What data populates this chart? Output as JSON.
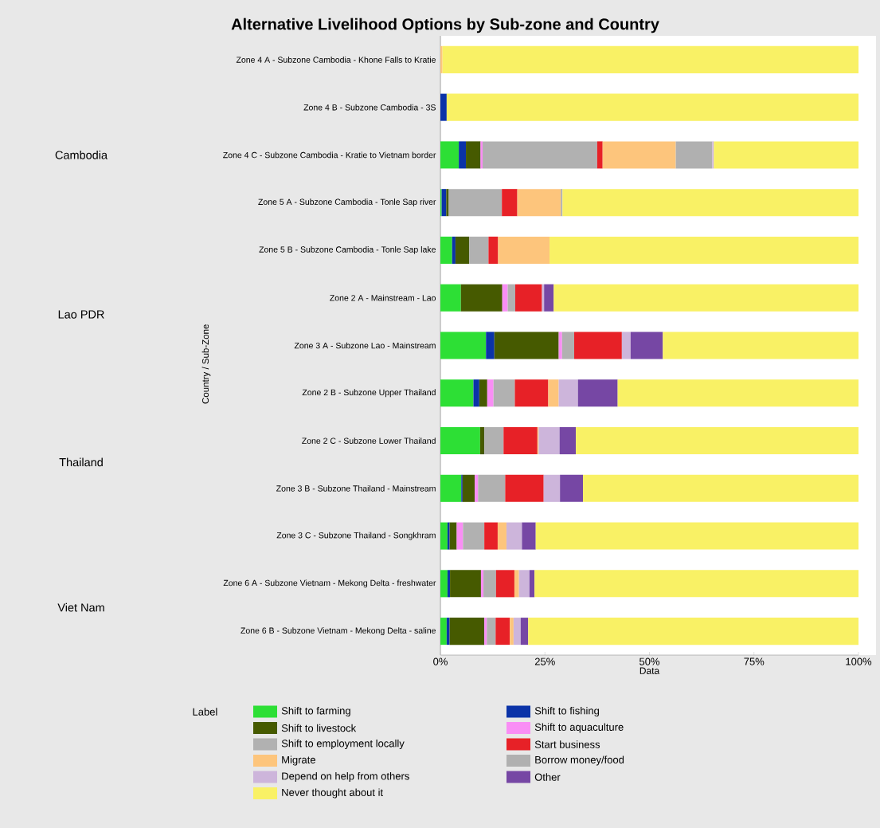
{
  "chart_data": {
    "type": "bar",
    "orientation": "horizontal",
    "stacked": true,
    "title": "Alternative Livelihood Options by Sub-zone and Country",
    "xlabel": "Data",
    "ylabel": "Country / Sub-Zone",
    "legend_title": "Label",
    "categories": [
      "Zone 4 A - Subzone Cambodia - Khone Falls to Kratie",
      "Zone 4 B - Subzone Cambodia - 3S",
      "Zone 4 C - Subzone Cambodia - Kratie to Vietnam border",
      "Zone 5 A - Subzone Cambodia - Tonle Sap river",
      "Zone 5 B - Subzone Cambodia - Tonle Sap lake",
      "Zone 2 A - Mainstream - Lao",
      "Zone 3 A - Subzone Lao - Mainstream",
      "Zone 2 B - Subzone Upper Thailand",
      "Zone 2 C - Subzone Lower Thailand",
      "Zone 3 B - Subzone Thailand - Mainstream",
      "Zone 3 C - Subzone Thailand - Songkhram",
      "Zone 6 A - Subzone Vietnam - Mekong Delta - freshwater",
      "Zone 6 B - Subzone Vietnam - Mekong Delta - saline"
    ],
    "annotations": [
      "Cambodia",
      "Lao PDR",
      "Thailand",
      "Viet Nam"
    ],
    "xlim": [
      0,
      100
    ],
    "xticks": [
      {
        "value": 0,
        "label": "0%"
      },
      {
        "value": 25,
        "label": "25%"
      },
      {
        "value": 50,
        "label": "50%"
      },
      {
        "value": 75,
        "label": "75%"
      },
      {
        "value": 100,
        "label": "100%"
      }
    ],
    "grid": false,
    "legend": "bottom",
    "series": [
      {
        "name": "Shift to farming",
        "color": "#2ddf35",
        "values": [
          null,
          null,
          4.4,
          0.3,
          2.8,
          4.9,
          10.9,
          7.9,
          9.5,
          5.0,
          1.7,
          1.7,
          1.5
        ]
      },
      {
        "name": "Shift to fishing",
        "color": "#0b33a8",
        "values": [
          null,
          1.5,
          1.7,
          1.1,
          0.8,
          null,
          2.0,
          1.4,
          null,
          0.3,
          0.5,
          0.6,
          0.7
        ]
      },
      {
        "name": "Shift to livestock",
        "color": "#465a00",
        "values": [
          null,
          null,
          3.5,
          0.6,
          3.3,
          9.9,
          15.4,
          1.9,
          1.0,
          2.9,
          1.7,
          7.4,
          8.3
        ]
      },
      {
        "name": "Shift to aquaculture",
        "color": "#f98ef5",
        "values": [
          null,
          null,
          0.5,
          null,
          null,
          1.3,
          0.8,
          1.5,
          null,
          0.8,
          1.5,
          0.6,
          0.6
        ]
      },
      {
        "name": "Shift to employment locally",
        "color": "#b1b1b1",
        "values": [
          null,
          null,
          27.4,
          12.7,
          4.6,
          1.8,
          2.9,
          5.1,
          4.6,
          6.5,
          5.1,
          3.0,
          2.1
        ]
      },
      {
        "name": "Start business",
        "color": "#e72127",
        "values": [
          null,
          null,
          1.3,
          3.7,
          2.3,
          6.4,
          11.4,
          8.0,
          8.1,
          9.2,
          3.2,
          4.4,
          3.4
        ]
      },
      {
        "name": "Migrate",
        "color": "#fdc57c",
        "values": [
          0.5,
          null,
          17.5,
          10.4,
          12.3,
          null,
          null,
          2.5,
          0.3,
          null,
          2.1,
          1.1,
          0.9
        ]
      },
      {
        "name": "Borrow money/food",
        "color": "#b0b0b0",
        "values": [
          null,
          null,
          8.7,
          0.4,
          null,
          null,
          null,
          null,
          null,
          null,
          null,
          null,
          null
        ]
      },
      {
        "name": "Depend on help from others",
        "color": "#cdb5db",
        "values": [
          null,
          null,
          0.4,
          null,
          null,
          0.5,
          2.1,
          4.6,
          5.0,
          3.9,
          3.7,
          2.5,
          1.7
        ]
      },
      {
        "name": "Other",
        "color": "#7647a4",
        "values": [
          null,
          null,
          null,
          null,
          null,
          2.3,
          7.7,
          9.5,
          3.9,
          5.5,
          3.3,
          1.2,
          1.8
        ]
      },
      {
        "name": "Never thought about it",
        "color": "#f9f165",
        "values": [
          99.5,
          98.5,
          34.6,
          70.8,
          73.9,
          72.9,
          46.8,
          57.6,
          67.6,
          65.9,
          77.2,
          77.5,
          79.0
        ]
      }
    ]
  }
}
